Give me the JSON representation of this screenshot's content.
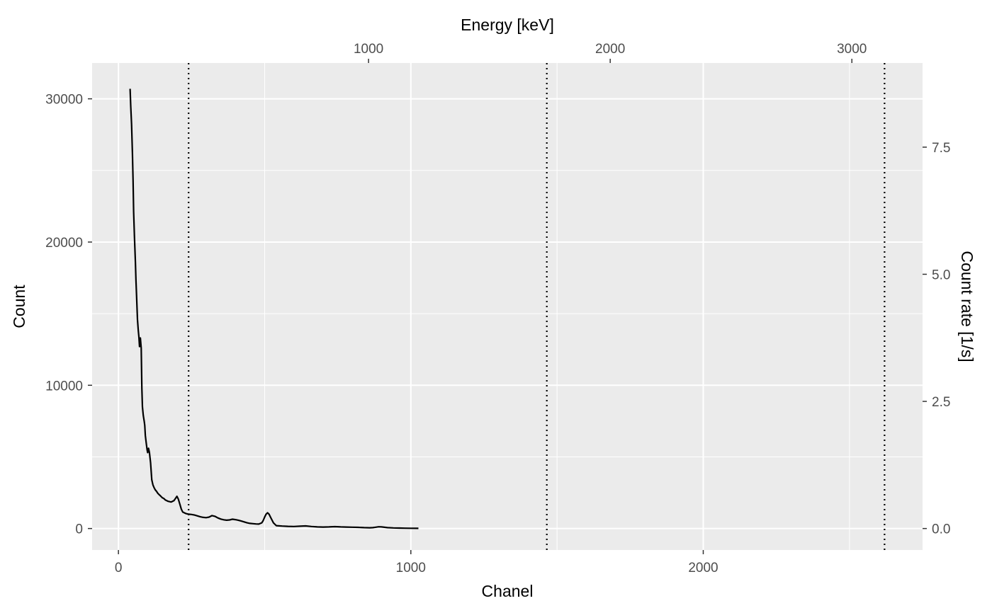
{
  "chart_data": {
    "type": "line",
    "title": "",
    "xlabel": "Chanel",
    "ylabel": "Count",
    "secondary_x_label": "Energy [keV]",
    "secondary_y_label": "Count rate [1/s]",
    "xlim": [
      -90,
      2750
    ],
    "ylim": [
      -1500,
      32500
    ],
    "x_ticks": [
      "0",
      "1000",
      "2000"
    ],
    "y_ticks": [
      "0",
      "10000",
      "20000",
      "30000"
    ],
    "secondary_x_ticks": [
      "1000",
      "2000",
      "3000"
    ],
    "secondary_y_ticks": [
      "0.0",
      "2.5",
      "5.0",
      "7.5"
    ],
    "grid": true,
    "background": "#ebebeb",
    "line_color": "#000000",
    "vlines_channel": [
      240,
      1465,
      2620
    ],
    "series": [
      {
        "x": [
          40,
          42,
          45,
          48,
          50,
          52,
          55,
          58,
          60,
          62,
          65,
          68,
          70,
          72,
          75,
          78,
          80,
          82,
          85,
          88,
          90,
          92,
          95,
          98,
          100,
          103,
          106,
          110,
          114,
          118,
          122,
          126,
          130,
          135,
          140,
          145,
          150,
          155,
          160,
          170,
          180,
          190,
          195,
          200,
          205,
          210,
          215,
          220,
          225,
          230,
          240,
          250,
          260,
          270,
          280,
          290,
          300,
          310,
          320,
          330,
          340,
          350,
          360,
          370,
          380,
          390,
          400,
          410,
          420,
          430,
          440,
          450,
          460,
          470,
          480,
          490,
          495,
          500,
          505,
          510,
          515,
          520,
          530,
          540,
          560,
          580,
          600,
          620,
          640,
          660,
          680,
          700,
          720,
          740,
          760,
          780,
          800,
          820,
          840,
          860,
          870,
          880,
          890,
          900,
          920,
          940,
          960,
          980,
          1000,
          1026
        ],
        "y": [
          30700,
          29500,
          28200,
          26200,
          24300,
          22100,
          20300,
          18600,
          17300,
          16300,
          14600,
          13800,
          13400,
          12700,
          13300,
          12600,
          9800,
          8500,
          7900,
          7500,
          7200,
          6500,
          6000,
          5500,
          5300,
          5600,
          5300,
          4600,
          3400,
          3050,
          2850,
          2700,
          2600,
          2450,
          2350,
          2250,
          2150,
          2100,
          2000,
          1900,
          1850,
          1950,
          2100,
          2250,
          2050,
          1700,
          1350,
          1150,
          1100,
          1050,
          1000,
          980,
          940,
          880,
          820,
          780,
          760,
          800,
          900,
          850,
          740,
          660,
          610,
          580,
          600,
          650,
          620,
          580,
          520,
          460,
          400,
          360,
          340,
          320,
          310,
          400,
          550,
          800,
          1000,
          1100,
          1000,
          800,
          400,
          200,
          170,
          150,
          140,
          160,
          180,
          140,
          110,
          100,
          110,
          130,
          110,
          100,
          90,
          80,
          60,
          50,
          60,
          90,
          120,
          110,
          60,
          40,
          30,
          20,
          15,
          10
        ]
      }
    ]
  }
}
